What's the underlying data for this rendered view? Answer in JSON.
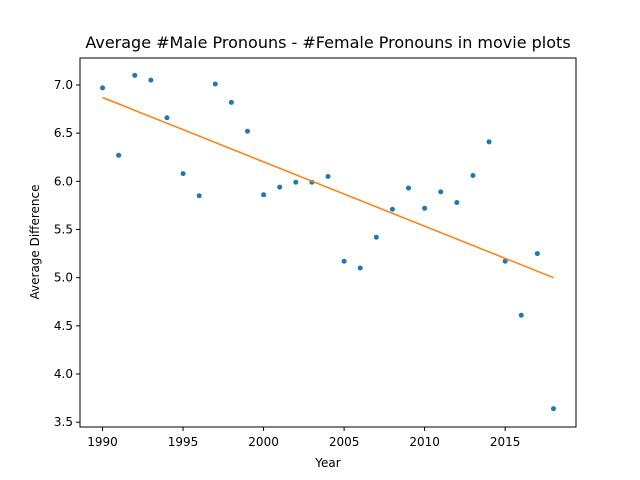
{
  "chart_data": {
    "type": "scatter",
    "title": "Average #Male Pronouns - #Female Pronouns in movie plots",
    "xlabel": "Year",
    "ylabel": "Average Difference",
    "xlim": [
      1988.6,
      2019.4
    ],
    "ylim": [
      3.45,
      7.28
    ],
    "xticks": [
      1990,
      1995,
      2000,
      2005,
      2010,
      2015
    ],
    "yticks": [
      3.5,
      4.0,
      4.5,
      5.0,
      5.5,
      6.0,
      6.5,
      7.0
    ],
    "ytick_labels": [
      "3.5",
      "4.0",
      "4.5",
      "5.0",
      "5.5",
      "6.0",
      "6.5",
      "7.0"
    ],
    "grid": false,
    "series": [
      {
        "kind": "scatter",
        "color": "#1f77b4",
        "x": [
          1990,
          1991,
          1992,
          1993,
          1994,
          1995,
          1996,
          1997,
          1998,
          1999,
          2000,
          2001,
          2002,
          2003,
          2004,
          2005,
          2006,
          2007,
          2008,
          2009,
          2010,
          2011,
          2012,
          2013,
          2014,
          2015,
          2016,
          2017,
          2018
        ],
        "y": [
          6.97,
          6.27,
          7.1,
          7.05,
          6.66,
          6.08,
          5.85,
          7.01,
          6.82,
          6.52,
          5.86,
          5.94,
          5.99,
          5.99,
          6.05,
          5.17,
          5.1,
          5.42,
          5.71,
          5.93,
          5.72,
          5.89,
          5.78,
          6.06,
          6.41,
          5.17,
          4.61,
          5.25,
          3.64
        ]
      },
      {
        "kind": "line",
        "color": "#ff7f0e",
        "x": [
          1990,
          2018
        ],
        "y": [
          6.87,
          5.0
        ]
      }
    ]
  }
}
